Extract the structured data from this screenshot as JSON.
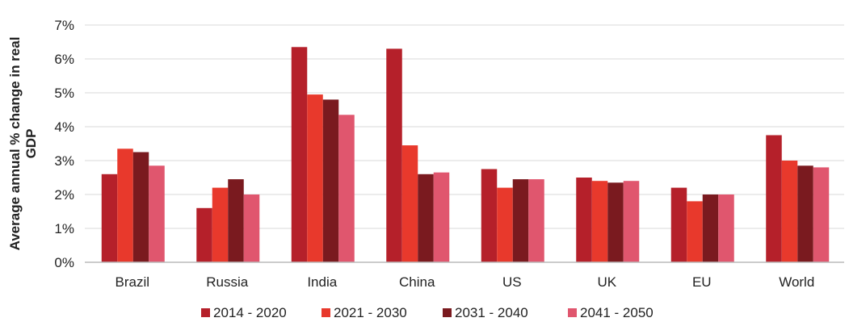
{
  "chart_data": {
    "type": "bar",
    "title": "",
    "xlabel": "",
    "ylabel_lines": [
      "Average annual % change in real",
      "GDP"
    ],
    "ylim": [
      0,
      7
    ],
    "yticks": [
      "0%",
      "1%",
      "2%",
      "3%",
      "4%",
      "5%",
      "6%",
      "7%"
    ],
    "grid": true,
    "legend_position": "bottom",
    "categories": [
      "Brazil",
      "Russia",
      "India",
      "China",
      "US",
      "UK",
      "EU",
      "World"
    ],
    "series": [
      {
        "name": "2014 - 2020",
        "color": "#b5202a",
        "values": [
          2.6,
          1.6,
          6.35,
          6.3,
          2.75,
          2.5,
          2.2,
          3.75
        ]
      },
      {
        "name": "2021 - 2030",
        "color": "#e8392c",
        "values": [
          3.35,
          2.2,
          4.95,
          3.45,
          2.2,
          2.4,
          1.8,
          3.0
        ]
      },
      {
        "name": "2031 - 2040",
        "color": "#7a1a1f",
        "values": [
          3.25,
          2.45,
          4.8,
          2.6,
          2.45,
          2.35,
          2.0,
          2.85
        ]
      },
      {
        "name": "2041 - 2050",
        "color": "#e0566e",
        "values": [
          2.85,
          2.0,
          4.35,
          2.65,
          2.45,
          2.4,
          2.0,
          2.8
        ]
      }
    ]
  }
}
